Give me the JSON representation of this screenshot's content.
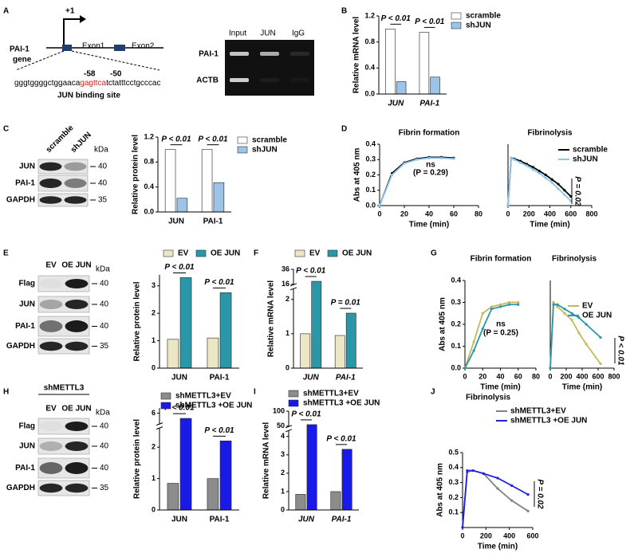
{
  "panels": [
    "A",
    "B",
    "C",
    "D",
    "E",
    "F",
    "G",
    "H",
    "I",
    "J"
  ],
  "gene_diagram": {
    "tss": "+1",
    "exon1": "Exon1",
    "exon2": "Exon2",
    "gene_label": [
      "PAI-1",
      "gene"
    ],
    "positions": [
      "-58",
      "-50"
    ],
    "sequence": [
      "gggtggggctggaaca",
      "gagttca",
      "tctatttcctgcccac"
    ],
    "caption": "JUN binding site"
  },
  "chip_gel": {
    "lanes": [
      "Input",
      "JUN",
      "IgG"
    ],
    "rows": [
      "PAI-1",
      "ACTB"
    ]
  },
  "blots": [
    {
      "lanes": [
        "scramble",
        "shJUN"
      ],
      "rows": [
        "JUN",
        "PAI-1",
        "GAPDH"
      ],
      "unit": "kDa",
      "markers": [
        "40",
        "40",
        "35"
      ]
    },
    {
      "lanes": [
        "EV",
        "OE JUN"
      ],
      "rows": [
        "Flag",
        "JUN",
        "PAI-1",
        "GAPDH"
      ],
      "unit": "kDa",
      "markers": [
        "40",
        "40",
        "40",
        "35"
      ]
    },
    {
      "group": "shMETTL3",
      "lanes": [
        "EV",
        "OE JUN"
      ],
      "rows": [
        "Flag",
        "JUN",
        "PAI-1",
        "GAPDH"
      ],
      "unit": "kDa",
      "markers": [
        "40",
        "40",
        "40",
        "35"
      ]
    }
  ],
  "chart_data": [
    {
      "type": "bar",
      "ylabel": "Relative mRNA level",
      "categories": [
        "JUN",
        "PAI-1"
      ],
      "italic_categories": true,
      "series": [
        {
          "name": "scramble",
          "color": "#ffffff",
          "values": [
            1.0,
            0.95
          ]
        },
        {
          "name": "shJUN",
          "color": "#9dc3e6",
          "values": [
            0.19,
            0.26
          ]
        }
      ],
      "ylim": [
        0,
        1.2
      ],
      "yticks": [
        {
          "value": 0,
          "label": "0.0"
        },
        0.4,
        0.8,
        1.2
      ],
      "annotations": [
        "P < 0.01",
        "P < 0.01"
      ]
    },
    {
      "type": "bar",
      "ylabel": "Relative protein level",
      "categories": [
        "JUN",
        "PAI-1"
      ],
      "italic_categories": false,
      "series": [
        {
          "name": "scramble",
          "color": "#ffffff",
          "values": [
            1.0,
            1.0
          ]
        },
        {
          "name": "shJUN",
          "color": "#9dc3e6",
          "values": [
            0.22,
            0.47
          ]
        }
      ],
      "ylim": [
        0,
        1.2
      ],
      "yticks": [
        {
          "value": 0,
          "label": "0.0"
        },
        0.4,
        0.8,
        1.2
      ],
      "annotations": [
        "P < 0.01",
        "P < 0.01"
      ]
    },
    {
      "type": "line",
      "title": "Fibrin formation",
      "ylabel": "Abs at 405 nm",
      "xlabel": "Time (min)",
      "x": [
        0,
        10,
        20,
        30,
        40,
        50,
        60
      ],
      "series": [
        {
          "color": "#000000",
          "values": [
            0.0,
            0.21,
            0.28,
            0.305,
            0.315,
            0.315,
            0.31
          ]
        },
        {
          "color": "#8ec6ea",
          "values": [
            0.0,
            0.2,
            0.275,
            0.3,
            0.31,
            0.31,
            0.305
          ]
        }
      ],
      "xlim": [
        0,
        80
      ],
      "xticks": [
        0,
        20,
        40,
        60,
        80
      ],
      "ylim": [
        0,
        0.4
      ],
      "yticks": [
        {
          "value": 0,
          "label": "0.0"
        },
        0.1,
        0.2,
        0.3,
        0.4
      ],
      "annotations": [
        "ns",
        "(P = 0.29)"
      ]
    },
    {
      "type": "line",
      "title": "Fibrinolysis",
      "xlabel": "Time (min)",
      "x": [
        0,
        30,
        60,
        120,
        180,
        240,
        300,
        360,
        420,
        480,
        540,
        600
      ],
      "series": [
        {
          "name": "scramble",
          "color": "#000000",
          "values": [
            0.0,
            0.31,
            0.305,
            0.29,
            0.27,
            0.25,
            0.225,
            0.2,
            0.17,
            0.14,
            0.1,
            0.06
          ]
        },
        {
          "name": "shJUN",
          "color": "#8ec6ea",
          "values": [
            0.0,
            0.31,
            0.3,
            0.28,
            0.26,
            0.235,
            0.21,
            0.18,
            0.15,
            0.11,
            0.07,
            0.03
          ]
        }
      ],
      "xlim": [
        0,
        800
      ],
      "xticks": [
        0,
        200,
        400,
        600,
        800
      ],
      "ylim": [
        0,
        0.4
      ],
      "annotations": [
        "P = 0.02"
      ]
    },
    {
      "type": "bar",
      "ylabel": "Relative protein level",
      "categories": [
        "JUN",
        "PAI-1"
      ],
      "italic_categories": false,
      "series": [
        {
          "name": "EV",
          "color": "#ebe7c5",
          "values": [
            1.05,
            1.1
          ]
        },
        {
          "name": "OE JUN",
          "color": "#2a97a8",
          "values": [
            3.3,
            2.75
          ]
        }
      ],
      "ylim": [
        0,
        3.4
      ],
      "yticks": [
        0,
        1,
        2,
        3
      ],
      "annotations": [
        "P < 0.01",
        "P < 0.01"
      ]
    },
    {
      "type": "bar",
      "ylabel": "Relative mRNA level",
      "categories": [
        "JUN",
        "PAI-1"
      ],
      "italic_categories": true,
      "series": [
        {
          "name": "EV",
          "color": "#ebe7c5",
          "values": [
            1.0,
            0.95
          ]
        },
        {
          "name": "OE JUN",
          "color": "#2a97a8",
          "values": [
            20,
            1.6
          ]
        }
      ],
      "ylim": [
        0,
        36
      ],
      "ybreak": [
        2.3,
        16
      ],
      "yticks": [
        0,
        1,
        2,
        16,
        36
      ],
      "annotations": [
        "P < 0.01",
        "P = 0.01"
      ]
    },
    {
      "type": "line",
      "title": "Fibrin formation",
      "ylabel": "Abs at 405 nm",
      "xlabel": "Time (min)",
      "x": [
        0,
        10,
        20,
        30,
        40,
        50,
        60
      ],
      "series": [
        {
          "color": "#c4b85c",
          "values": [
            0.0,
            0.12,
            0.25,
            0.28,
            0.29,
            0.3,
            0.3
          ]
        },
        {
          "color": "#2a97a8",
          "values": [
            0.0,
            0.08,
            0.18,
            0.27,
            0.28,
            0.29,
            0.29
          ]
        }
      ],
      "xlim": [
        0,
        80
      ],
      "xticks": [
        0,
        20,
        40,
        60,
        80
      ],
      "ylim": [
        0,
        0.4
      ],
      "yticks": [
        {
          "value": 0,
          "label": "0.0"
        },
        0.1,
        0.2,
        0.3,
        0.4
      ],
      "annotations": [
        "ns",
        "(P = 0.25)"
      ]
    },
    {
      "type": "line",
      "title": "Fibrinolysis",
      "xlabel": "Time (min)",
      "x": [
        0,
        40,
        90,
        180,
        270,
        360,
        450,
        630
      ],
      "series": [
        {
          "name": "EV",
          "color": "#c4b85c",
          "values": [
            0.0,
            0.3,
            0.28,
            0.25,
            0.22,
            0.16,
            0.11,
            0.02
          ]
        },
        {
          "name": "OE JUN",
          "color": "#2a97a8",
          "values": [
            0.0,
            0.29,
            0.29,
            0.27,
            0.25,
            0.23,
            0.2,
            0.14
          ]
        }
      ],
      "xlim": [
        0,
        800
      ],
      "xticks": [
        0,
        200,
        400,
        600,
        800
      ],
      "ylim": [
        0,
        0.4
      ],
      "annotations": [
        "P < 0.01"
      ]
    },
    {
      "type": "bar",
      "ylabel": "Relative protein level",
      "categories": [
        "JUN",
        "PAI-1"
      ],
      "italic_categories": false,
      "series": [
        {
          "name": "shMETTL3+EV",
          "color": "#8c8c8c",
          "values": [
            0.85,
            1.0
          ]
        },
        {
          "name": "shMETTL3 +OE JUN",
          "color": "#1a1ae6",
          "values": [
            5.5,
            2.2
          ]
        }
      ],
      "ylim": [
        0,
        6.5
      ],
      "ybreak": [
        2.6,
        5
      ],
      "yticks": [
        0,
        1,
        2,
        6
      ],
      "annotations": [
        "P < 0.01",
        "P < 0.01"
      ]
    },
    {
      "type": "bar",
      "ylabel": "Relative mRNA level",
      "categories": [
        "JUN",
        "PAI-1"
      ],
      "italic_categories": true,
      "series": [
        {
          "name": "shMETTL3+EV",
          "color": "#8c8c8c",
          "values": [
            0.85,
            1.0
          ]
        },
        {
          "name": "shMETTL3 +OE JUN",
          "color": "#1a1ae6",
          "values": [
            55,
            3.3
          ]
        }
      ],
      "ylim": [
        0,
        100
      ],
      "ybreak": [
        4.3,
        50
      ],
      "yticks": [
        0,
        1,
        2,
        3,
        4,
        50,
        100
      ],
      "annotations": [
        "P < 0.01",
        "P < 0.01"
      ]
    },
    {
      "type": "line",
      "title": "Fibrinolysis",
      "ylabel": "Abs at 405 nm",
      "xlabel": "Time (min)",
      "x": [
        0,
        40,
        90,
        180,
        300,
        420,
        560
      ],
      "series": [
        {
          "name": "shMETTL3+EV",
          "color": "#808080",
          "values": [
            0.0,
            0.37,
            0.38,
            0.36,
            0.26,
            0.18,
            0.11
          ]
        },
        {
          "name": "shMETTL3 +OE JUN",
          "color": "#2020e0",
          "values": [
            0.0,
            0.38,
            0.38,
            0.36,
            0.33,
            0.28,
            0.22
          ]
        }
      ],
      "xlim": [
        0,
        600
      ],
      "xticks": [
        0,
        200,
        400,
        600
      ],
      "ylim": [
        0,
        0.5
      ],
      "yticks": [
        0.1,
        0.2,
        0.3,
        0.4,
        0.5
      ],
      "annotations": [
        "P = 0.02"
      ]
    }
  ]
}
